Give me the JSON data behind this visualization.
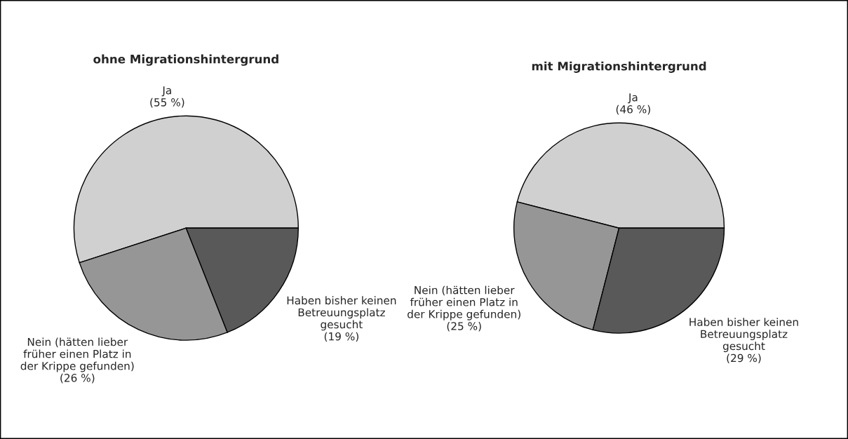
{
  "chart_data": [
    {
      "type": "pie",
      "title": "ohne Migrationshintergrund",
      "categories": [
        "Ja",
        "Nein (hätten lieber\nfrüher einen Platz in\nder Krippe gefunden)",
        "Haben bisher keinen\nBetreuungsplatz\ngesucht"
      ],
      "values": [
        55,
        26,
        19
      ],
      "colors": [
        "#d0d0d0",
        "#969696",
        "#595959"
      ],
      "value_labels": [
        "(55 %)",
        "(26 %)",
        "(19 %)"
      ]
    },
    {
      "type": "pie",
      "title": "mit Migrationshintergrund",
      "categories": [
        "Ja",
        "Nein (hätten lieber\nfrüher einen Platz in\nder Krippe gefunden)",
        "Haben bisher keinen\nBetreuungsplatz\ngesucht"
      ],
      "values": [
        46,
        25,
        29
      ],
      "colors": [
        "#d0d0d0",
        "#969696",
        "#595959"
      ],
      "value_labels": [
        "(46 %)",
        "(25 %)",
        "(29 %)"
      ]
    }
  ]
}
